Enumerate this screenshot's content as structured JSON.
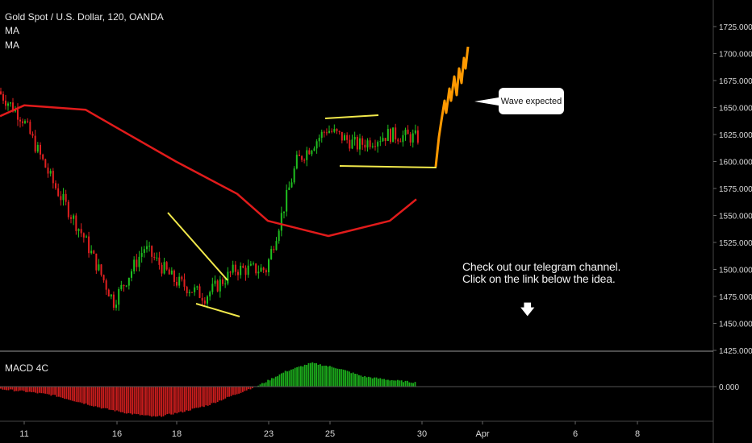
{
  "header": {
    "symbol": "Gold Spot / U.S. Dollar, 120, OANDA",
    "ma1": "MA",
    "ma2": "MA"
  },
  "macd_label": "MACD 4C",
  "callout": "Wave expected",
  "note": {
    "line1": "Check out our telegram channel.",
    "line2": "Click on the link below the idea."
  },
  "colors": {
    "up": "#1fbf1f",
    "down": "#e02020",
    "ma": "#e11b1b",
    "trend": "#f2e94b",
    "projection": "#ff9900",
    "axis_text": "#d8d8d8"
  },
  "chart_data": [
    {
      "type": "line",
      "title": "Gold Spot / U.S. Dollar, 120, OANDA",
      "y_ticks": [
        "1725.000",
        "1700.000",
        "1675.000",
        "1650.000",
        "1625.000",
        "1600.000",
        "1575.000",
        "1550.000",
        "1525.000",
        "1500.000",
        "1475.000",
        "1450.000",
        "1425.000"
      ],
      "x_ticks": [
        "11",
        "16",
        "18",
        "23",
        "25",
        "30",
        "Apr",
        "6",
        "8"
      ],
      "ylim": [
        1420,
        1735
      ],
      "series": [
        {
          "name": "Price",
          "x": [
            "Mar 9",
            "Mar 10",
            "Mar 11",
            "Mar 12",
            "Mar 13",
            "Mar 16",
            "Mar 17",
            "Mar 18",
            "Mar 19",
            "Mar 20",
            "Mar 23",
            "Mar 24",
            "Mar 25",
            "Mar 26",
            "Mar 27",
            "Mar 30"
          ],
          "values": [
            1665,
            1655,
            1640,
            1580,
            1530,
            1470,
            1520,
            1490,
            1475,
            1500,
            1500,
            1600,
            1630,
            1615,
            1625,
            1622
          ]
        },
        {
          "name": "MA",
          "x": [
            "Mar 9",
            "Mar 11",
            "Mar 13",
            "Mar 16",
            "Mar 18",
            "Mar 20",
            "Mar 23",
            "Mar 25",
            "Mar 27",
            "Mar 30"
          ],
          "values": [
            1642,
            1652,
            1648,
            1632,
            1600,
            1570,
            1545,
            1531,
            1545,
            1565
          ]
        },
        {
          "name": "Wave expected",
          "x": [
            "Mar 31",
            "Apr 1"
          ],
          "values": [
            1595,
            1710
          ]
        }
      ]
    },
    {
      "type": "bar",
      "title": "MACD 4C",
      "y_ticks": [
        "0.000"
      ],
      "series": [
        {
          "name": "MACD 4C",
          "values": [
            -3,
            -6,
            -10,
            -18,
            -26,
            -32,
            -36,
            -30,
            -22,
            -10,
            2,
            18,
            28,
            22,
            12,
            8,
            5
          ]
        }
      ]
    }
  ]
}
